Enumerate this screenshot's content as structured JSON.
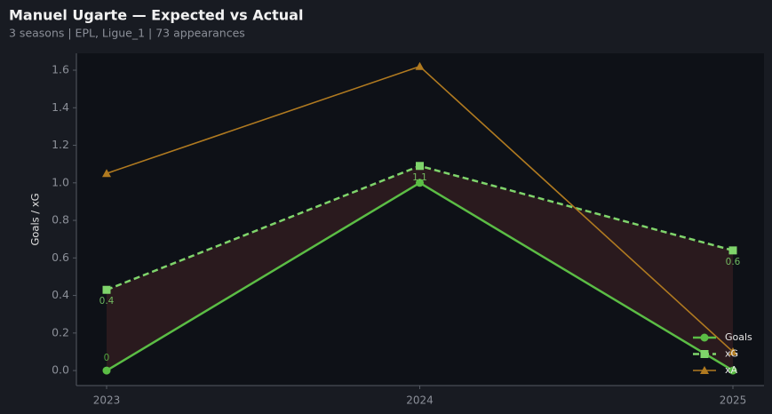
{
  "chart_data": {
    "type": "line",
    "title": "Manuel Ugarte — Expected vs Actual",
    "subtitle": "3 seasons | EPL, Ligue_1 | 73 appearances",
    "y_label": "Goals / xG",
    "categories": [
      "2023",
      "2024",
      "2025"
    ],
    "series": [
      {
        "name": "Goals",
        "color": "#5bbd45",
        "marker": "circle",
        "dashed": false,
        "width": 2.5,
        "values": [
          0,
          1,
          0
        ],
        "value_labels": [
          "0",
          null,
          null
        ]
      },
      {
        "name": "xG",
        "color": "#7fd46b",
        "marker": "square",
        "dashed": true,
        "width": 2.5,
        "values": [
          0.43,
          1.09,
          0.64
        ],
        "value_labels": [
          "0.4",
          "1.1",
          "0.6"
        ]
      },
      {
        "name": "xA",
        "color": "#b07a20",
        "marker": "triangle",
        "dashed": false,
        "width": 1.6,
        "values": [
          1.05,
          1.62,
          0.1
        ]
      }
    ],
    "fill_between": [
      0,
      1
    ],
    "fill_color": "#2e1c1f",
    "ylim": [
      -0.08,
      1.69
    ],
    "yticks": [
      {
        "value": 0,
        "label": "0.0"
      },
      0.2,
      0.4,
      0.6,
      0.8,
      {
        "value": 1,
        "label": "1.0"
      },
      1.2,
      1.4,
      1.6
    ],
    "legend": "lower right"
  }
}
